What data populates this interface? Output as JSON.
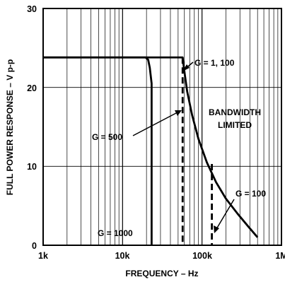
{
  "chart_data": {
    "type": "line",
    "title": "",
    "xlabel": "FREQUENCY – Hz",
    "ylabel": "FULL POWER RESPONSE – V p-p",
    "x_scale": "log",
    "xlim": [
      1000,
      1000000
    ],
    "ylim": [
      0,
      30
    ],
    "x_tick_labels": [
      "1k",
      "10k",
      "100k",
      "1M"
    ],
    "x_tick_values": [
      1000,
      10000,
      100000,
      1000000
    ],
    "y_tick_labels": [
      "0",
      "10",
      "20",
      "30"
    ],
    "y_tick_values": [
      0,
      10,
      20,
      30
    ],
    "grid": true,
    "series": [
      {
        "name": "G = 1000",
        "style": "solid",
        "points": [
          [
            1000,
            23.8
          ],
          [
            19500,
            23.8
          ],
          [
            21000,
            23.5
          ],
          [
            22000,
            22.5
          ],
          [
            23200,
            20.5
          ],
          [
            23200,
            0
          ]
        ]
      },
      {
        "name": "G = 1, 100",
        "style": "solid",
        "points": [
          [
            1000,
            23.8
          ],
          [
            57000,
            23.8
          ],
          [
            60000,
            22
          ],
          [
            65000,
            19.5
          ],
          [
            75000,
            16.5
          ],
          [
            90000,
            13.5
          ],
          [
            115000,
            10.5
          ],
          [
            150000,
            8
          ],
          [
            200000,
            5.9
          ],
          [
            280000,
            4
          ],
          [
            380000,
            2.4
          ],
          [
            500000,
            1
          ]
        ]
      },
      {
        "name": "G = 500",
        "style": "dashed",
        "points": [
          [
            57000,
            23.8
          ],
          [
            57000,
            0
          ]
        ]
      },
      {
        "name": "G = 100",
        "style": "dashed",
        "points": [
          [
            133000,
            10.3
          ],
          [
            133000,
            0
          ]
        ]
      }
    ],
    "annotations": [
      {
        "text": "G = 1, 100"
      },
      {
        "text": "BANDWIDTH"
      },
      {
        "text": "LIMITED"
      },
      {
        "text": "G = 500"
      },
      {
        "text": "G = 100"
      },
      {
        "text": "G = 1000"
      }
    ]
  }
}
